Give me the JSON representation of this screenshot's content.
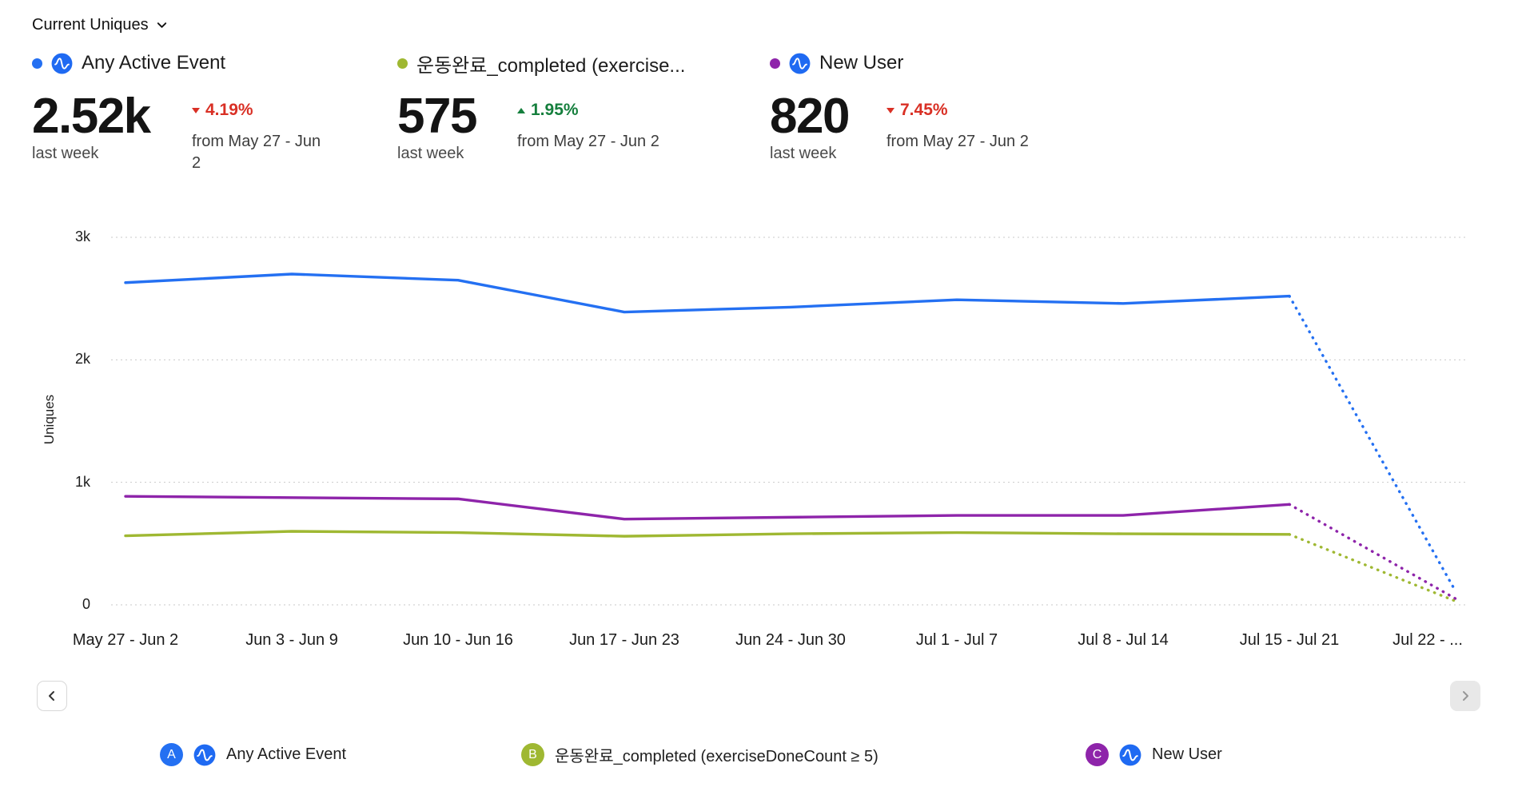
{
  "controls": {
    "metric_selector": "Current Uniques"
  },
  "summaries": [
    {
      "name": "Any Active Event",
      "value": "2.52k",
      "period": "last week",
      "direction": "down",
      "change": "4.19%",
      "compare": "from May 27 - Jun 2",
      "color": "#2470f2",
      "has_logo": true
    },
    {
      "name": "운동완료_completed (exercise...",
      "value": "575",
      "period": "last week",
      "direction": "up",
      "change": "1.95%",
      "compare": "from May 27 - Jun 2",
      "color": "#9fb832",
      "has_logo": false
    },
    {
      "name": "New User",
      "value": "820",
      "period": "last week",
      "direction": "down",
      "change": "7.45%",
      "compare": "from May 27 - Jun 2",
      "color": "#8e24aa",
      "has_logo": true
    }
  ],
  "chart_data": {
    "type": "line",
    "title": "Current Uniques",
    "ylabel": "Uniques",
    "ylim": [
      0,
      3000
    ],
    "grid": "horizontal-dotted",
    "legend_position": "bottom",
    "dotted_last_segment": true,
    "y_ticks": [
      {
        "label": "0",
        "value": 0
      },
      {
        "label": "1k",
        "value": 1000
      },
      {
        "label": "2k",
        "value": 2000
      },
      {
        "label": "3k",
        "value": 3000
      }
    ],
    "categories": [
      "May 27 - Jun 2",
      "Jun 3 - Jun 9",
      "Jun 10 - Jun 16",
      "Jun 17 - Jun 23",
      "Jun 24 - Jun 30",
      "Jul 1 - Jul 7",
      "Jul 8 - Jul 14",
      "Jul 15 - Jul 21",
      "Jul 22 - ..."
    ],
    "series": [
      {
        "name": "Any Active Event",
        "color": "#2470f2",
        "values": [
          2630,
          2700,
          2650,
          2390,
          2430,
          2490,
          2460,
          2520,
          110
        ]
      },
      {
        "name": "운동완료_completed (exerciseDoneCount ≥ 5)",
        "color": "#9fb832",
        "values": [
          564,
          600,
          590,
          560,
          580,
          590,
          580,
          575,
          30
        ]
      },
      {
        "name": "New User",
        "color": "#8e24aa",
        "values": [
          886,
          875,
          865,
          700,
          715,
          730,
          730,
          820,
          50
        ]
      }
    ]
  },
  "legend": {
    "items": [
      {
        "badge": "A",
        "label": "Any Active Event",
        "color": "#2470f2",
        "has_logo": true
      },
      {
        "badge": "B",
        "label": "운동완료_completed (exerciseDoneCount ≥ 5)",
        "color": "#9fb832",
        "has_logo": false
      },
      {
        "badge": "C",
        "label": "New User",
        "color": "#8e24aa",
        "has_logo": true
      }
    ]
  },
  "colors": {
    "positive": "#157f3d",
    "negative": "#d93025",
    "amplitude_blue": "#1f6af2"
  }
}
